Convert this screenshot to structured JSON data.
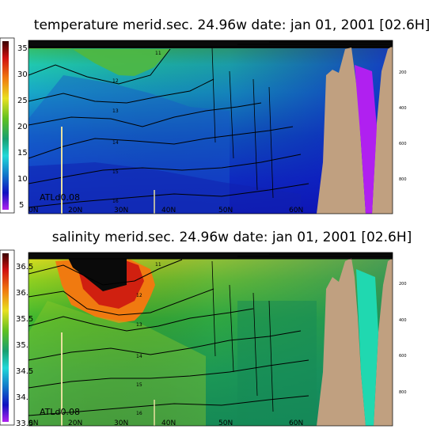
{
  "panels": [
    {
      "title": "temperature merid.sec. 24.96w   date: jan 01, 2001   [02.6H]",
      "colorbar_labels": [
        "35",
        "30",
        "25",
        "20",
        "15",
        "10",
        "5"
      ],
      "lat_labels": [
        "0N",
        "20N",
        "30N",
        "40N",
        "50N",
        "60N"
      ],
      "depth_labels": [
        "200",
        "400",
        "600",
        "800"
      ],
      "contour_labels": [
        "11",
        "12",
        "13",
        "14",
        "15",
        "16"
      ],
      "model_tag": "ATLd0.08"
    },
    {
      "title": "salinity merid.sec. 24.96w   date: jan 01, 2001   [02.6H]",
      "colorbar_labels": [
        "36.5",
        "36.",
        "35.5",
        "35.",
        "34.5",
        "34.",
        "33.5"
      ],
      "lat_labels": [
        "0N",
        "20N",
        "30N",
        "40N",
        "50N",
        "60N"
      ],
      "depth_labels": [
        "200",
        "400",
        "600",
        "800"
      ],
      "contour_labels": [
        "11",
        "12",
        "13",
        "14",
        "15",
        "16"
      ],
      "model_tag": "ATLd0.08"
    }
  ],
  "chart_data": [
    {
      "type": "heatmap",
      "variable": "temperature",
      "title": "temperature merid.sec. 24.96w   date: jan 01, 2001   [02.6H]",
      "x_tick_labels": [
        "0N",
        "20N",
        "30N",
        "40N",
        "50N",
        "60N"
      ],
      "y_tick_labels": [
        "200",
        "400",
        "600",
        "800"
      ],
      "colorbar_range": [
        5,
        35
      ],
      "colorbar_ticks": [
        35,
        30,
        25,
        20,
        15,
        10,
        5
      ],
      "contour_levels": [
        11,
        12,
        13,
        14,
        15,
        16
      ]
    },
    {
      "type": "heatmap",
      "variable": "salinity",
      "title": "salinity merid.sec. 24.96w   date: jan 01, 2001   [02.6H]",
      "x_tick_labels": [
        "0N",
        "20N",
        "30N",
        "40N",
        "50N",
        "60N"
      ],
      "y_tick_labels": [
        "200",
        "400",
        "600",
        "800"
      ],
      "colorbar_range": [
        33.5,
        36.5
      ],
      "colorbar_ticks": [
        36.5,
        36.0,
        35.5,
        35.0,
        34.5,
        34.0,
        33.5
      ],
      "contour_levels": [
        11,
        12,
        13,
        14,
        15,
        16
      ]
    }
  ]
}
